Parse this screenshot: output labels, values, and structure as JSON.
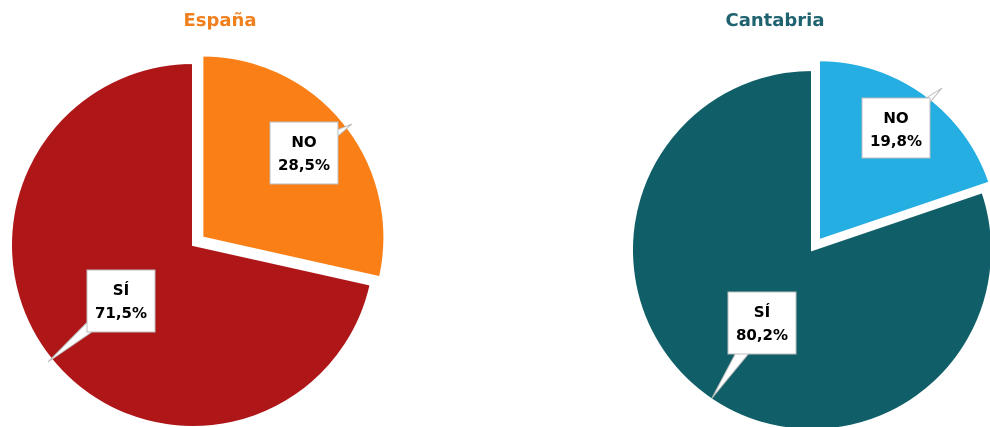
{
  "chart_data": [
    {
      "type": "pie",
      "title": "España",
      "categories": [
        "NO",
        "SÍ"
      ],
      "values": [
        28.5,
        71.5
      ],
      "value_labels": [
        "28,5%",
        "71,5%"
      ],
      "colors": [
        "#f97f16",
        "#ae1618"
      ],
      "title_color": "#f07f1e",
      "exploded": "NO"
    },
    {
      "type": "pie",
      "title": "Cantabria",
      "categories": [
        "NO",
        "SÍ"
      ],
      "values": [
        19.8,
        80.2
      ],
      "value_labels": [
        "19,8%",
        "80,2%"
      ],
      "colors": [
        "#24aee2",
        "#0f5e68"
      ],
      "title_color": "#1f6270",
      "exploded": "NO"
    }
  ]
}
